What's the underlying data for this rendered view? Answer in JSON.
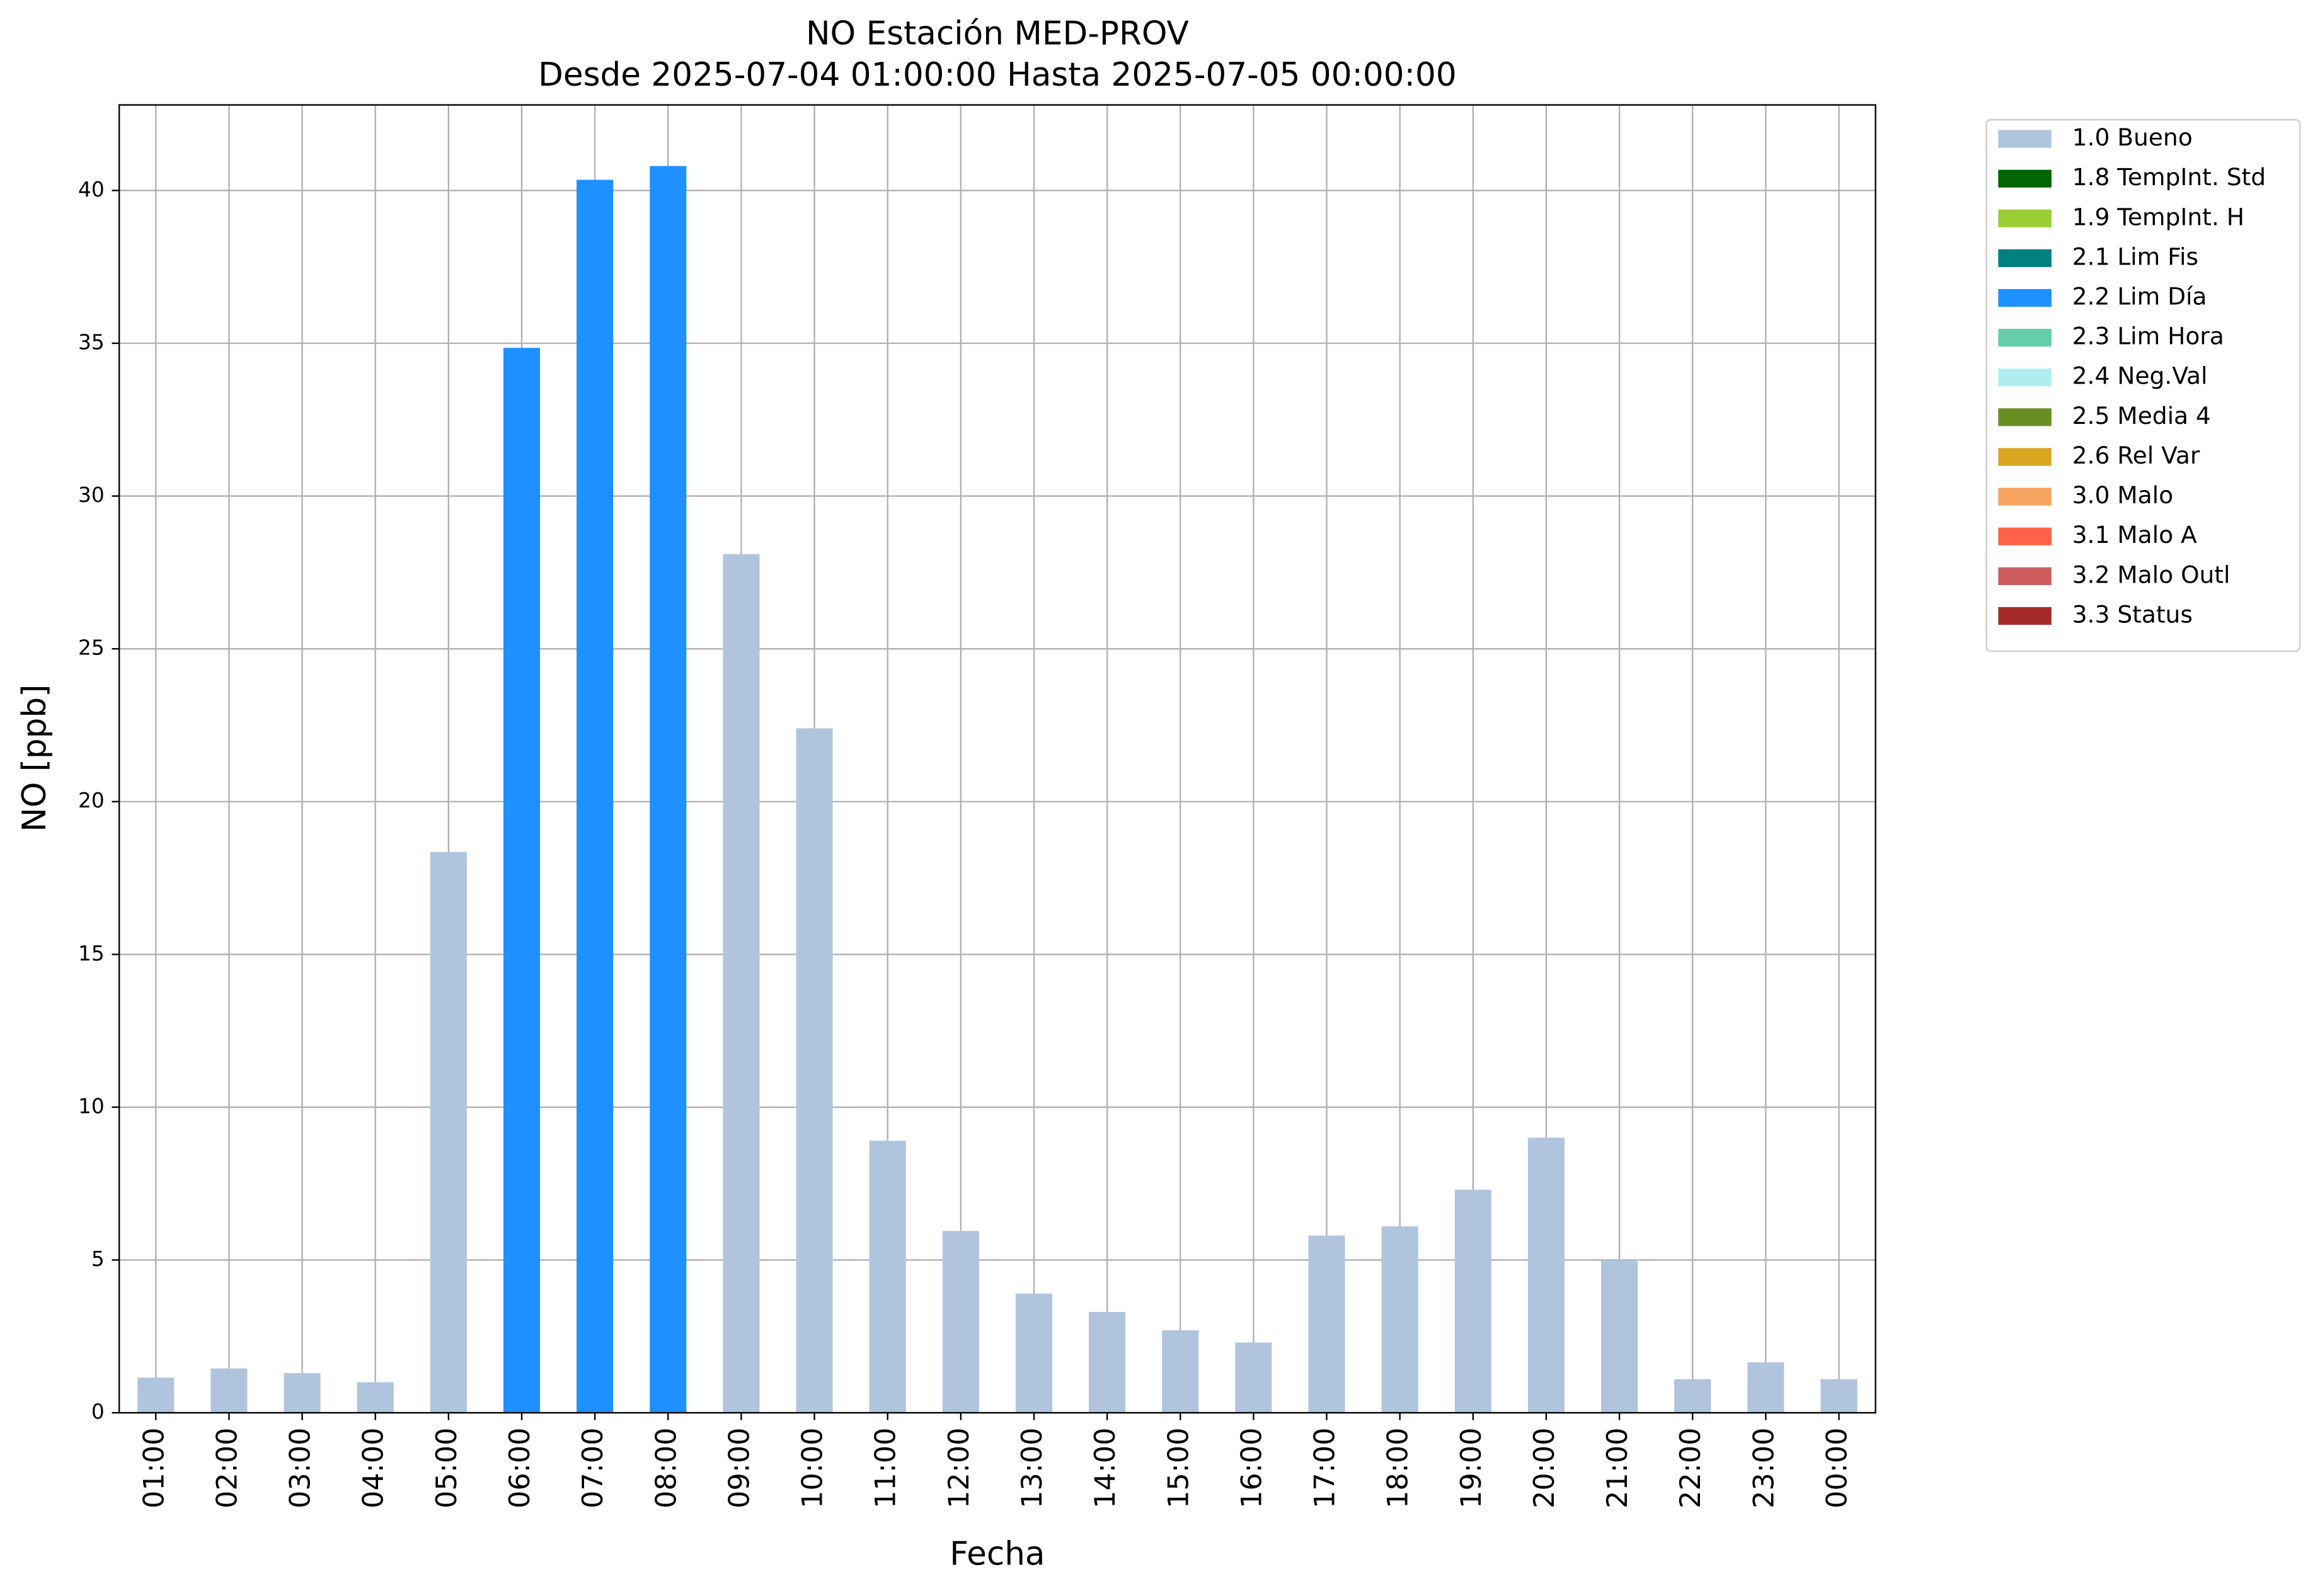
{
  "chart_data": {
    "type": "bar",
    "title": "NO Estación MED-PROV",
    "subtitle": "Desde 2025-07-04 01:00:00 Hasta 2025-07-05 00:00:00",
    "x_label": "Fecha",
    "y_label": "NO [ppb]",
    "categories": [
      "01:00",
      "02:00",
      "03:00",
      "04:00",
      "05:00",
      "06:00",
      "07:00",
      "08:00",
      "09:00",
      "10:00",
      "11:00",
      "12:00",
      "13:00",
      "14:00",
      "15:00",
      "16:00",
      "17:00",
      "18:00",
      "19:00",
      "20:00",
      "21:00",
      "22:00",
      "23:00",
      "00:00"
    ],
    "series": [
      {
        "name": "1.0 Bueno",
        "color": "#b0c4de",
        "values": [
          1.15,
          1.45,
          1.3,
          1.0,
          18.35,
          null,
          null,
          null,
          28.1,
          22.4,
          8.9,
          5.95,
          3.9,
          3.3,
          2.7,
          2.3,
          5.8,
          6.1,
          7.3,
          9.0,
          5.0,
          1.1,
          1.65,
          1.1
        ]
      },
      {
        "name": "1.8 TempInt. Std",
        "color": "#006400",
        "values": [
          null,
          null,
          null,
          null,
          null,
          null,
          null,
          null,
          null,
          null,
          null,
          null,
          null,
          null,
          null,
          null,
          null,
          null,
          null,
          null,
          null,
          null,
          null,
          null
        ]
      },
      {
        "name": "1.9 TempInt. H",
        "color": "#9acd32",
        "values": [
          null,
          null,
          null,
          null,
          null,
          null,
          null,
          null,
          null,
          null,
          null,
          null,
          null,
          null,
          null,
          null,
          null,
          null,
          null,
          null,
          null,
          null,
          null,
          null
        ]
      },
      {
        "name": "2.1 Lim Fis",
        "color": "#008080",
        "values": [
          null,
          null,
          null,
          null,
          null,
          null,
          null,
          null,
          null,
          null,
          null,
          null,
          null,
          null,
          null,
          null,
          null,
          null,
          null,
          null,
          null,
          null,
          null,
          null
        ]
      },
      {
        "name": "2.2 Lim Día",
        "color": "#1e90ff",
        "values": [
          null,
          null,
          null,
          null,
          null,
          34.85,
          40.35,
          40.8,
          null,
          null,
          null,
          null,
          null,
          null,
          null,
          null,
          null,
          null,
          null,
          null,
          null,
          null,
          null,
          null
        ]
      },
      {
        "name": "2.3 Lim Hora",
        "color": "#66cdaa",
        "values": [
          null,
          null,
          null,
          null,
          null,
          null,
          null,
          null,
          null,
          null,
          null,
          null,
          null,
          null,
          null,
          null,
          null,
          null,
          null,
          null,
          null,
          null,
          null,
          null
        ]
      },
      {
        "name": "2.4 Neg.Val",
        "color": "#afeeee",
        "values": [
          null,
          null,
          null,
          null,
          null,
          null,
          null,
          null,
          null,
          null,
          null,
          null,
          null,
          null,
          null,
          null,
          null,
          null,
          null,
          null,
          null,
          null,
          null,
          null
        ]
      },
      {
        "name": "2.5 Media 4",
        "color": "#6b8e23",
        "values": [
          null,
          null,
          null,
          null,
          null,
          null,
          null,
          null,
          null,
          null,
          null,
          null,
          null,
          null,
          null,
          null,
          null,
          null,
          null,
          null,
          null,
          null,
          null,
          null
        ]
      },
      {
        "name": "2.6 Rel Var",
        "color": "#daa520",
        "values": [
          null,
          null,
          null,
          null,
          null,
          null,
          null,
          null,
          null,
          null,
          null,
          null,
          null,
          null,
          null,
          null,
          null,
          null,
          null,
          null,
          null,
          null,
          null,
          null
        ]
      },
      {
        "name": "3.0 Malo",
        "color": "#f4a460",
        "values": [
          null,
          null,
          null,
          null,
          null,
          null,
          null,
          null,
          null,
          null,
          null,
          null,
          null,
          null,
          null,
          null,
          null,
          null,
          null,
          null,
          null,
          null,
          null,
          null
        ]
      },
      {
        "name": "3.1 Malo A",
        "color": "#ff6347",
        "values": [
          null,
          null,
          null,
          null,
          null,
          null,
          null,
          null,
          null,
          null,
          null,
          null,
          null,
          null,
          null,
          null,
          null,
          null,
          null,
          null,
          null,
          null,
          null,
          null
        ]
      },
      {
        "name": "3.2 Malo Outl",
        "color": "#cd5c5c",
        "values": [
          null,
          null,
          null,
          null,
          null,
          null,
          null,
          null,
          null,
          null,
          null,
          null,
          null,
          null,
          null,
          null,
          null,
          null,
          null,
          null,
          null,
          null,
          null,
          null
        ]
      },
      {
        "name": "3.3 Status",
        "color": "#a52a2a",
        "values": [
          null,
          null,
          null,
          null,
          null,
          null,
          null,
          null,
          null,
          null,
          null,
          null,
          null,
          null,
          null,
          null,
          null,
          null,
          null,
          null,
          null,
          null,
          null,
          null
        ]
      }
    ],
    "ylim": [
      0,
      42.8
    ],
    "yticks": [
      0,
      5,
      10,
      15,
      20,
      25,
      30,
      35,
      40
    ],
    "grid": true,
    "stacked": true,
    "legend": "outside-right"
  }
}
